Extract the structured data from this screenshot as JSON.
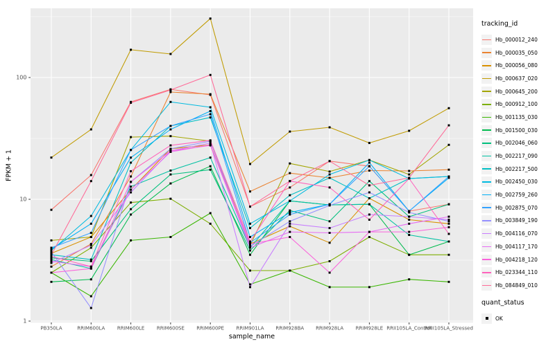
{
  "figure": {
    "bg": "#FFFFFF",
    "panel_bg": "#EBEBEB",
    "grid_color": "#FFFFFF",
    "axis_text_color": "#4D4D4D",
    "tick_color": "#333333",
    "text_color": "#000000",
    "point_color": "#000000",
    "legend_key_bg": "#F2F2F2"
  },
  "chart_data": {
    "type": "line",
    "title": "",
    "xlabel": "sample_name",
    "ylabel": "FPKM + 1",
    "y_scale": "log10",
    "ylim": [
      0.97,
      370
    ],
    "y_ticks": [
      1,
      10,
      100
    ],
    "y_minor_ticks": [
      3.1623,
      31.623,
      316.23
    ],
    "grid": true,
    "legend_position": "right",
    "legend_title": "tracking_id",
    "legend2_title": "quant_status",
    "legend2_items": [
      {
        "label": "OK",
        "marker": "black-square"
      }
    ],
    "point_marker": "small-black-square",
    "categories": [
      "PB350LA",
      "RRIM600LA",
      "RRIM600LE",
      "RRIM600SE",
      "RRIM600PE",
      "RRIM901LA",
      "RRIM928BA",
      "RRIM928LA",
      "RRIM928LE",
      "RRII105LA_Control",
      "RRII105LA_Stressed"
    ],
    "series": [
      {
        "name": "Hb_000012_240",
        "color": "#F8766D",
        "values": [
          8.2,
          15.8,
          63,
          80,
          72,
          8.7,
          12.5,
          20.6,
          18.7,
          8.0,
          9.1
        ]
      },
      {
        "name": "Hb_000035_050",
        "color": "#EA8331",
        "values": [
          2.8,
          4.3,
          15.4,
          76,
          73,
          11.6,
          16.4,
          15.0,
          17.2,
          17.1,
          17.5
        ]
      },
      {
        "name": "Hb_000056_080",
        "color": "#D89000",
        "values": [
          3.6,
          4.9,
          12.0,
          26,
          28,
          4.3,
          6.0,
          4.4,
          10.2,
          6.8,
          6.3
        ]
      },
      {
        "name": "Hb_000637_020",
        "color": "#C09B00",
        "values": [
          22,
          37.5,
          169,
          156,
          305,
          19.5,
          36,
          39,
          29,
          36.5,
          56
        ]
      },
      {
        "name": "Hb_000645_200",
        "color": "#A3A500",
        "values": [
          4.6,
          4.9,
          32.4,
          33,
          30,
          4.2,
          19.7,
          16.9,
          21,
          16.0,
          28
        ]
      },
      {
        "name": "Hb_000912_100",
        "color": "#7CAE00",
        "values": [
          2.5,
          4.0,
          9.4,
          10.1,
          6.3,
          2.6,
          2.6,
          3.1,
          4.9,
          3.5,
          3.5
        ]
      },
      {
        "name": "Hb_001135_030",
        "color": "#39B600",
        "values": [
          2.5,
          1.6,
          4.6,
          4.9,
          7.7,
          2.0,
          2.6,
          1.9,
          1.9,
          2.2,
          2.1
        ]
      },
      {
        "name": "Hb_001500_030",
        "color": "#00BB4E",
        "values": [
          2.1,
          2.2,
          7.5,
          13.5,
          18.7,
          3.5,
          9.7,
          9.0,
          9.1,
          3.5,
          4.5
        ]
      },
      {
        "name": "Hb_002046_060",
        "color": "#00BF7D",
        "values": [
          3.3,
          3.1,
          8.3,
          16,
          17.5,
          3.8,
          8.1,
          6.6,
          14.1,
          7.2,
          9.1
        ]
      },
      {
        "name": "Hb_002217_090",
        "color": "#00C1A3",
        "values": [
          3.2,
          2.7,
          12.7,
          17.2,
          22,
          4.0,
          9.7,
          9.0,
          9.1,
          5.1,
          4.5
        ]
      },
      {
        "name": "Hb_002217_500",
        "color": "#00BFC4",
        "values": [
          3.5,
          3.2,
          20,
          40,
          47,
          5.8,
          10.8,
          15.0,
          10.2,
          14.8,
          15.4
        ]
      },
      {
        "name": "Hb_002450_030",
        "color": "#00BAE0",
        "values": [
          3.8,
          7.3,
          25.4,
          63,
          57,
          6.3,
          9.7,
          16.0,
          21,
          14.8,
          15.4
        ]
      },
      {
        "name": "Hb_002759_260",
        "color": "#00B0F6",
        "values": [
          3.9,
          6.3,
          22,
          37.5,
          53,
          4.9,
          7.8,
          9.1,
          20,
          8.0,
          15.0
        ]
      },
      {
        "name": "Hb_002875_070",
        "color": "#35A2FF",
        "values": [
          4.0,
          5.3,
          25.4,
          40,
          50,
          4.4,
          7.5,
          9.1,
          18.7,
          8.0,
          15.4
        ]
      },
      {
        "name": "Hb_003849_190",
        "color": "#9590FF",
        "values": [
          3.7,
          1.28,
          13.9,
          26,
          30,
          4.1,
          6.6,
          8.9,
          11.4,
          7.8,
          6.6
        ]
      },
      {
        "name": "Hb_004116_070",
        "color": "#C77CFF",
        "values": [
          3.0,
          4.2,
          11.4,
          25,
          29,
          1.9,
          6.3,
          5.8,
          7.5,
          7.2,
          6.8
        ]
      },
      {
        "name": "Hb_004117_170",
        "color": "#E76BF3",
        "values": [
          3.1,
          2.8,
          12.0,
          24.5,
          28,
          4.0,
          5.4,
          5.3,
          5.4,
          6.3,
          7.2
        ]
      },
      {
        "name": "Hb_004218_120",
        "color": "#FA62DB",
        "values": [
          2.5,
          2.7,
          13.9,
          25,
          27.7,
          4.3,
          4.9,
          2.5,
          5.4,
          5.4,
          5.9
        ]
      },
      {
        "name": "Hb_023344_110",
        "color": "#FF62BC",
        "values": [
          3.4,
          2.8,
          17,
          27.7,
          30.5,
          4.5,
          14.1,
          12.5,
          6.8,
          14.8,
          5.2
        ]
      },
      {
        "name": "Hb_084849_010",
        "color": "#FF6A98",
        "values": [
          3.5,
          14.1,
          62,
          79,
          105,
          8.7,
          14.1,
          20.6,
          13,
          15.0,
          40.5
        ]
      }
    ]
  }
}
